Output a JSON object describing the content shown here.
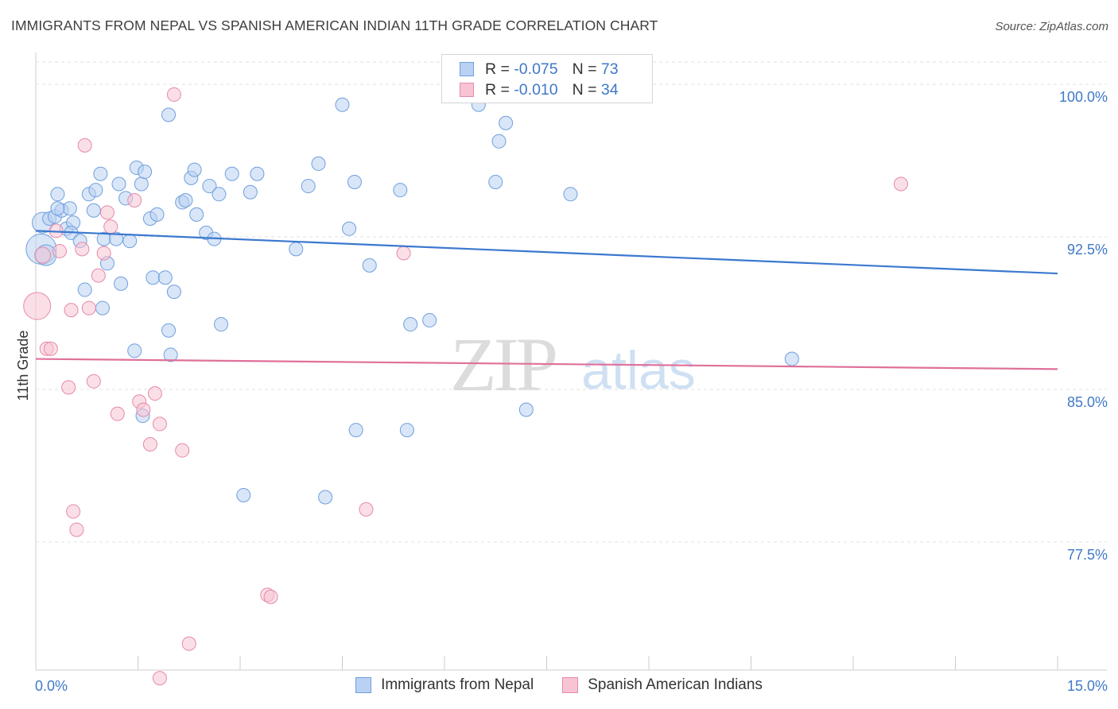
{
  "title": "IMMIGRANTS FROM NEPAL VS SPANISH AMERICAN INDIAN 11TH GRADE CORRELATION CHART",
  "source": "Source: ZipAtlas.com",
  "watermark": {
    "zip": "ZIP",
    "atlas": "atlas"
  },
  "legend_stats": [
    {
      "r_label": "R =",
      "r_value": "-0.075",
      "n_label": "N =",
      "n_value": "73"
    },
    {
      "r_label": "R =",
      "r_value": "-0.010",
      "n_label": "N =",
      "n_value": "34"
    }
  ],
  "chart_data": {
    "type": "scatter",
    "title": "IMMIGRANTS FROM NEPAL VS SPANISH AMERICAN INDIAN 11TH GRADE CORRELATION CHART",
    "xlabel": "",
    "ylabel": "11th Grade",
    "xlim": [
      0,
      15
    ],
    "ylim": [
      71.2,
      101.1
    ],
    "x_tick_labels": [
      "0.0%",
      "15.0%"
    ],
    "y_ticks": [
      77.5,
      85.0,
      92.5,
      100.0
    ],
    "y_tick_labels": [
      "77.5%",
      "85.0%",
      "92.5%",
      "100.0%"
    ],
    "grid": true,
    "colors": {
      "nepal": "#3b78d0",
      "spanish": "#e0709a",
      "tick": "#3f78c8"
    },
    "series": [
      {
        "name": "Immigrants from Nepal",
        "color": "#3b78d0",
        "trend": {
          "x": [
            0,
            15
          ],
          "y": [
            92.8,
            90.7
          ]
        },
        "points": [
          [
            0.08,
            91.9
          ],
          [
            0.15,
            91.6
          ],
          [
            0.1,
            93.2
          ],
          [
            0.2,
            93.4
          ],
          [
            0.28,
            93.5
          ],
          [
            0.32,
            94.6
          ],
          [
            0.38,
            93.8
          ],
          [
            0.45,
            92.9
          ],
          [
            0.5,
            93.9
          ],
          [
            0.55,
            93.2
          ],
          [
            0.52,
            92.7
          ],
          [
            0.65,
            92.3
          ],
          [
            0.78,
            94.6
          ],
          [
            0.88,
            94.8
          ],
          [
            0.95,
            95.6
          ],
          [
            0.85,
            93.8
          ],
          [
            1.0,
            92.4
          ],
          [
            1.05,
            91.2
          ],
          [
            1.18,
            92.4
          ],
          [
            1.22,
            95.1
          ],
          [
            1.25,
            90.2
          ],
          [
            1.32,
            94.4
          ],
          [
            1.38,
            92.3
          ],
          [
            1.48,
            95.9
          ],
          [
            1.55,
            95.1
          ],
          [
            1.6,
            95.7
          ],
          [
            1.68,
            93.4
          ],
          [
            1.78,
            93.6
          ],
          [
            1.72,
            90.5
          ],
          [
            1.9,
            90.5
          ],
          [
            1.95,
            98.5
          ],
          [
            2.03,
            89.8
          ],
          [
            2.15,
            94.2
          ],
          [
            2.2,
            94.3
          ],
          [
            2.28,
            95.4
          ],
          [
            2.33,
            95.8
          ],
          [
            2.36,
            93.6
          ],
          [
            2.5,
            92.7
          ],
          [
            2.55,
            95.0
          ],
          [
            2.62,
            92.4
          ],
          [
            2.69,
            94.6
          ],
          [
            2.88,
            95.6
          ],
          [
            2.72,
            88.2
          ],
          [
            3.15,
            94.7
          ],
          [
            3.25,
            95.6
          ],
          [
            3.82,
            91.9
          ],
          [
            4.0,
            95.0
          ],
          [
            4.15,
            96.1
          ],
          [
            4.5,
            99.0
          ],
          [
            4.6,
            92.9
          ],
          [
            4.68,
            95.2
          ],
          [
            4.9,
            91.1
          ],
          [
            5.35,
            94.8
          ],
          [
            5.5,
            88.2
          ],
          [
            5.78,
            88.4
          ],
          [
            6.5,
            99.0
          ],
          [
            6.8,
            97.2
          ],
          [
            6.9,
            98.1
          ],
          [
            6.75,
            95.2
          ],
          [
            7.85,
            94.6
          ],
          [
            11.1,
            86.5
          ],
          [
            0.72,
            89.9
          ],
          [
            0.98,
            89.0
          ],
          [
            1.45,
            86.9
          ],
          [
            1.57,
            83.7
          ],
          [
            1.95,
            87.9
          ],
          [
            1.98,
            86.7
          ],
          [
            3.05,
            79.8
          ],
          [
            4.25,
            79.7
          ],
          [
            4.7,
            83.0
          ],
          [
            5.45,
            83.0
          ],
          [
            7.2,
            84.0
          ],
          [
            0.32,
            93.9
          ]
        ]
      },
      {
        "name": "Spanish American Indians",
        "color": "#e0709a",
        "trend": {
          "x": [
            0,
            15
          ],
          "y": [
            86.5,
            86.0
          ]
        },
        "points": [
          [
            0.02,
            89.1
          ],
          [
            0.1,
            91.6
          ],
          [
            0.16,
            87.0
          ],
          [
            0.22,
            87.0
          ],
          [
            0.3,
            92.8
          ],
          [
            0.35,
            91.8
          ],
          [
            0.48,
            85.1
          ],
          [
            0.52,
            88.9
          ],
          [
            0.68,
            91.9
          ],
          [
            0.72,
            97.0
          ],
          [
            0.78,
            89.0
          ],
          [
            0.85,
            85.4
          ],
          [
            0.92,
            90.6
          ],
          [
            1.0,
            91.7
          ],
          [
            1.05,
            93.7
          ],
          [
            1.1,
            93.0
          ],
          [
            1.2,
            83.8
          ],
          [
            1.45,
            94.3
          ],
          [
            1.52,
            84.4
          ],
          [
            1.58,
            84.0
          ],
          [
            1.68,
            82.3
          ],
          [
            1.75,
            84.8
          ],
          [
            1.82,
            83.3
          ],
          [
            2.03,
            99.5
          ],
          [
            2.15,
            82.0
          ],
          [
            0.55,
            79.0
          ],
          [
            0.6,
            78.1
          ],
          [
            3.4,
            74.9
          ],
          [
            3.45,
            74.8
          ],
          [
            2.25,
            72.5
          ],
          [
            1.82,
            70.8
          ],
          [
            4.85,
            79.1
          ],
          [
            5.4,
            91.7
          ],
          [
            12.7,
            95.1
          ]
        ]
      }
    ]
  }
}
